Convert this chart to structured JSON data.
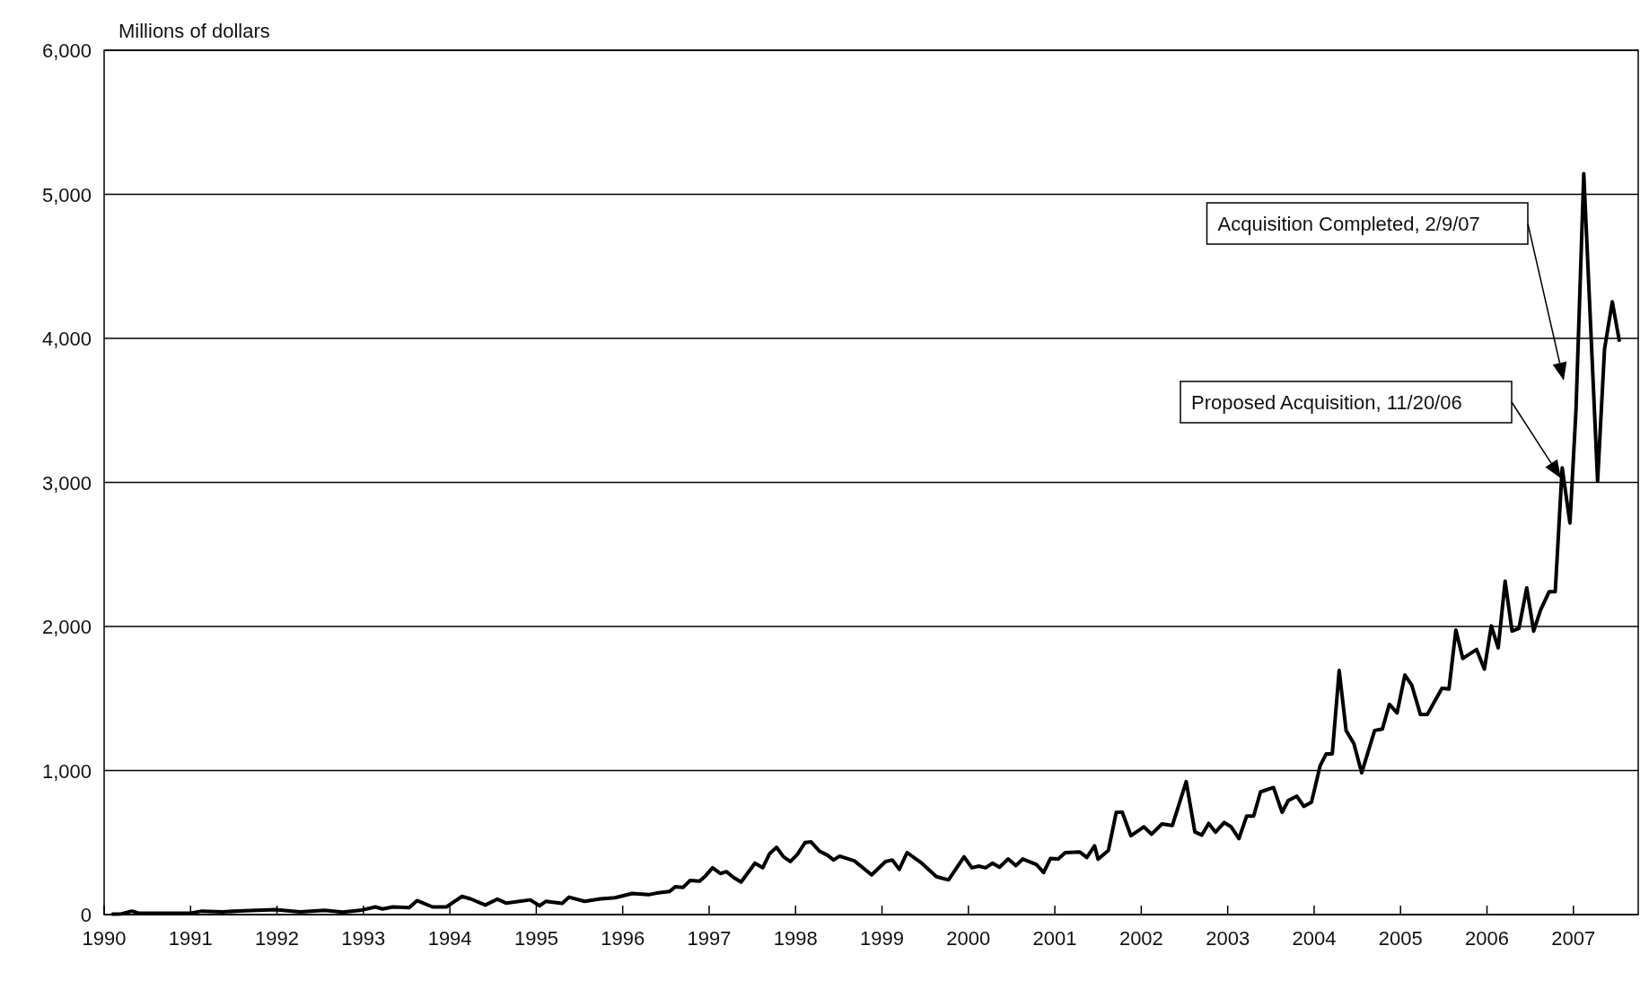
{
  "chart_data": {
    "type": "line",
    "ylabel": "Millions of dollars",
    "xlim": [
      1990,
      2007.75
    ],
    "xticks": [
      1990,
      1991,
      1992,
      1993,
      1994,
      1995,
      1996,
      1997,
      1998,
      1999,
      2000,
      2001,
      2002,
      2003,
      2004,
      2005,
      2006,
      2007
    ],
    "ylim": [
      0,
      6000
    ],
    "yticks": [
      {
        "value": 0,
        "label": "0"
      },
      {
        "value": 1000,
        "label": "1,000"
      },
      {
        "value": 2000,
        "label": "2,000"
      },
      {
        "value": 3000,
        "label": "3,000"
      },
      {
        "value": 4000,
        "label": "4,000"
      },
      {
        "value": 5000,
        "label": "5,000"
      },
      {
        "value": 6000,
        "label": "6,000"
      }
    ],
    "grid": "y",
    "marker": "none",
    "line_style": "solid",
    "annotations": [
      "Acquisition Completed, 2/9/07",
      "Proposed Acquisition, 11/20/06"
    ],
    "series": [
      {
        "color": "#000000",
        "x": [
          1990.1,
          1990.2,
          1990.32,
          1990.4,
          1991,
          1991.13,
          1991.37,
          1991.62,
          1991.98,
          1992.27,
          1992.55,
          1992.76,
          1992.96,
          1993.14,
          1993.22,
          1993.34,
          1993.53,
          1993.62,
          1993.8,
          1993.96,
          1994.14,
          1994.24,
          1994.41,
          1994.55,
          1994.65,
          1994.93,
          1995.04,
          1995.11,
          1995.3,
          1995.38,
          1995.56,
          1995.74,
          1995.91,
          1996.11,
          1996.3,
          1996.39,
          1996.54,
          1996.61,
          1996.7,
          1996.78,
          1996.89,
          1996.96,
          1997.04,
          1997.13,
          1997.2,
          1997.28,
          1997.37,
          1997.53,
          1997.62,
          1997.7,
          1997.78,
          1997.86,
          1997.94,
          1998.02,
          1998.11,
          1998.18,
          1998.28,
          1998.37,
          1998.44,
          1998.51,
          1998.68,
          1998.88,
          1999.04,
          1999.12,
          1999.2,
          1999.29,
          1999.46,
          1999.63,
          1999.77,
          1999.95,
          2000.04,
          2000.12,
          2000.2,
          2000.28,
          2000.36,
          2000.46,
          2000.55,
          2000.63,
          2000.79,
          2000.87,
          2000.95,
          2001.04,
          2001.12,
          2001.29,
          2001.37,
          2001.46,
          2001.5,
          2001.62,
          2001.71,
          2001.78,
          2001.88,
          2002.03,
          2002.12,
          2002.24,
          2002.36,
          2002.52,
          2002.62,
          2002.7,
          2002.78,
          2002.86,
          2002.96,
          2003.04,
          2003.13,
          2003.22,
          2003.3,
          2003.38,
          2003.53,
          2003.63,
          2003.7,
          2003.8,
          2003.88,
          2003.97,
          2004.07,
          2004.14,
          2004.21,
          2004.29,
          2004.37,
          2004.46,
          2004.55,
          2004.7,
          2004.79,
          2004.87,
          2004.96,
          2005.05,
          2005.13,
          2005.23,
          2005.31,
          2005.48,
          2005.56,
          2005.64,
          2005.72,
          2005.88,
          2005.97,
          2006.05,
          2006.13,
          2006.21,
          2006.29,
          2006.37,
          2006.46,
          2006.54,
          2006.62,
          2006.72,
          2006.79,
          2006.87,
          2006.96,
          2007.03,
          2007.12,
          2007.28,
          2007.36,
          2007.45,
          2007.53
        ],
        "values": [
          3,
          5,
          24,
          10,
          10,
          24,
          19,
          27,
          34,
          19,
          29,
          17,
          29,
          53,
          39,
          53,
          49,
          97,
          53,
          53,
          126,
          109,
          66,
          107,
          80,
          102,
          61,
          92,
          78,
          121,
          92,
          109,
          117,
          146,
          138,
          149,
          160,
          193,
          189,
          237,
          232,
          270,
          325,
          285,
          298,
          259,
          226,
          357,
          325,
          423,
          467,
          401,
          368,
          417,
          500,
          504,
          439,
          412,
          379,
          406,
          373,
          276,
          368,
          379,
          314,
          430,
          357,
          263,
          241,
          401,
          325,
          336,
          325,
          357,
          329,
          386,
          340,
          386,
          346,
          292,
          390,
          386,
          430,
          434,
          396,
          477,
          385,
          446,
          710,
          710,
          548,
          609,
          558,
          629,
          619,
          923,
          574,
          552,
          633,
          572,
          639,
          609,
          527,
          684,
          684,
          852,
          882,
          710,
          791,
          822,
          751,
          781,
          1034,
          1116,
          1116,
          1694,
          1278,
          1187,
          984,
          1278,
          1288,
          1460,
          1400,
          1663,
          1592,
          1389,
          1389,
          1572,
          1565,
          1975,
          1778,
          1840,
          1704,
          2004,
          1851,
          2315,
          1968,
          1986,
          2268,
          1968,
          2114,
          2242,
          2242,
          3102,
          2718,
          3504,
          5143,
          3010,
          3925,
          4254,
          3987
        ]
      }
    ]
  }
}
